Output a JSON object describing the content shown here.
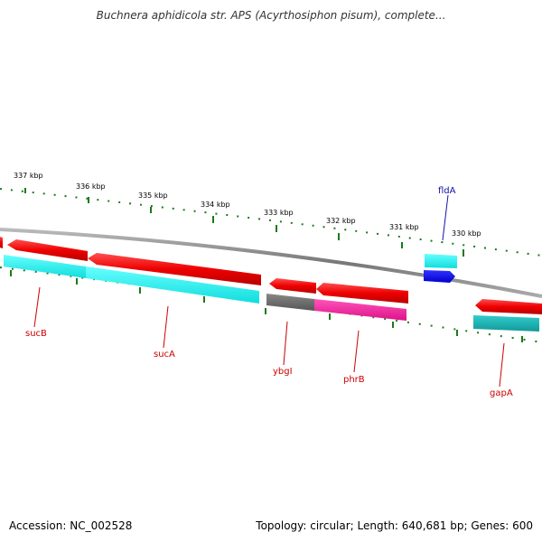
{
  "title": "Buchnera aphidicola str. APS (Acyrthosiphon pisum), complete...",
  "footer": {
    "accession": "Accession: NC_002528",
    "summary": "Topology: circular; Length: 640,681 bp; Genes: 600"
  },
  "colors": {
    "backbone": "#888888",
    "tick": "#1a7a1a",
    "cds": "#ee1111",
    "cds_label": "#cc0000",
    "gene_blue": "#1111dd",
    "gene_blue_label": "#1111aa",
    "gene_cyan": "#22eeee",
    "gene_dark_cyan": "#11bbbb",
    "gene_gray": "#666666",
    "gene_magenta": "#ee2299"
  },
  "scale_labels": [
    {
      "id": "kbp-337",
      "text": "337 kbp"
    },
    {
      "id": "kbp-336",
      "text": "336 kbp"
    },
    {
      "id": "kbp-335",
      "text": "335 kbp"
    },
    {
      "id": "kbp-334",
      "text": "334 kbp"
    },
    {
      "id": "kbp-333",
      "text": "333 kbp"
    },
    {
      "id": "kbp-332",
      "text": "332 kbp"
    },
    {
      "id": "kbp-331",
      "text": "331 kbp"
    },
    {
      "id": "kbp-330",
      "text": "330 kbp"
    }
  ],
  "genes": [
    {
      "id": "sucB",
      "label": "sucB"
    },
    {
      "id": "sucA",
      "label": "sucA"
    },
    {
      "id": "ybgI",
      "label": "ybgI"
    },
    {
      "id": "phrB",
      "label": "phrB"
    },
    {
      "id": "fldA",
      "label": "fldA"
    },
    {
      "id": "gapA",
      "label": "gapA"
    }
  ]
}
